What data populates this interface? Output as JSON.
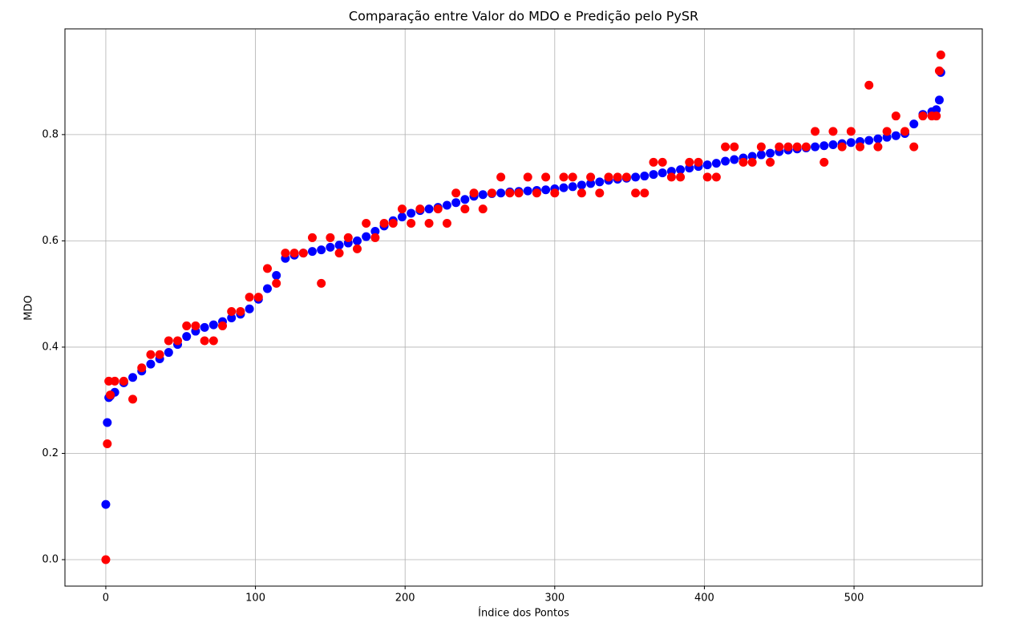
{
  "chart_data": {
    "type": "scatter",
    "title": "Comparação entre Valor do MDO e Predição pelo PySR",
    "x_label": "Índice dos Pontos",
    "y_label": "MDO",
    "x": [
      0,
      1,
      2,
      3,
      6,
      12,
      18,
      24,
      30,
      36,
      42,
      48,
      54,
      60,
      66,
      72,
      78,
      84,
      90,
      96,
      102,
      108,
      114,
      120,
      126,
      132,
      138,
      144,
      150,
      156,
      162,
      168,
      174,
      180,
      186,
      192,
      198,
      204,
      210,
      216,
      222,
      228,
      234,
      240,
      246,
      252,
      258,
      264,
      270,
      276,
      282,
      288,
      294,
      300,
      306,
      312,
      318,
      324,
      330,
      336,
      342,
      348,
      354,
      360,
      366,
      372,
      378,
      384,
      390,
      396,
      402,
      408,
      414,
      420,
      426,
      432,
      438,
      444,
      450,
      456,
      462,
      468,
      474,
      480,
      486,
      492,
      498,
      504,
      510,
      516,
      522,
      528,
      534,
      540,
      546,
      552,
      555,
      557,
      558
    ],
    "series": [
      {
        "color": "#0000ff",
        "values": [
          0.104,
          0.258,
          0.305,
          0.308,
          0.315,
          0.333,
          0.343,
          0.355,
          0.368,
          0.378,
          0.39,
          0.405,
          0.42,
          0.43,
          0.437,
          0.442,
          0.448,
          0.455,
          0.462,
          0.472,
          0.49,
          0.51,
          0.535,
          0.567,
          0.573,
          0.577,
          0.58,
          0.583,
          0.588,
          0.592,
          0.596,
          0.6,
          0.608,
          0.618,
          0.628,
          0.638,
          0.645,
          0.652,
          0.657,
          0.66,
          0.663,
          0.667,
          0.672,
          0.678,
          0.684,
          0.687,
          0.689,
          0.69,
          0.692,
          0.693,
          0.694,
          0.695,
          0.696,
          0.698,
          0.7,
          0.702,
          0.705,
          0.708,
          0.711,
          0.714,
          0.716,
          0.718,
          0.72,
          0.722,
          0.725,
          0.728,
          0.731,
          0.734,
          0.737,
          0.74,
          0.743,
          0.746,
          0.75,
          0.753,
          0.756,
          0.759,
          0.762,
          0.765,
          0.768,
          0.771,
          0.773,
          0.775,
          0.777,
          0.779,
          0.781,
          0.783,
          0.785,
          0.787,
          0.789,
          0.792,
          0.795,
          0.798,
          0.802,
          0.82,
          0.838,
          0.843,
          0.847,
          0.865,
          0.917
        ]
      },
      {
        "color": "#ff0000",
        "values": [
          0.0,
          0.218,
          0.336,
          0.31,
          0.336,
          0.336,
          0.302,
          0.361,
          0.386,
          0.386,
          0.412,
          0.412,
          0.44,
          0.44,
          0.412,
          0.412,
          0.44,
          0.467,
          0.467,
          0.494,
          0.494,
          0.548,
          0.52,
          0.577,
          0.577,
          0.577,
          0.606,
          0.52,
          0.606,
          0.577,
          0.606,
          0.585,
          0.633,
          0.606,
          0.633,
          0.633,
          0.66,
          0.633,
          0.66,
          0.633,
          0.66,
          0.633,
          0.69,
          0.66,
          0.69,
          0.66,
          0.69,
          0.72,
          0.69,
          0.69,
          0.72,
          0.69,
          0.72,
          0.69,
          0.72,
          0.72,
          0.69,
          0.72,
          0.69,
          0.72,
          0.72,
          0.72,
          0.69,
          0.69,
          0.748,
          0.748,
          0.72,
          0.72,
          0.748,
          0.748,
          0.72,
          0.72,
          0.777,
          0.777,
          0.748,
          0.748,
          0.777,
          0.748,
          0.777,
          0.777,
          0.777,
          0.777,
          0.806,
          0.748,
          0.806,
          0.777,
          0.806,
          0.777,
          0.893,
          0.777,
          0.806,
          0.835,
          0.806,
          0.777,
          0.835,
          0.835,
          0.835,
          0.92,
          0.95
        ]
      }
    ],
    "xlim": [
      -27.3,
      585.7
    ],
    "ylim": [
      -0.0498,
      0.999
    ],
    "xticks": [
      0,
      100,
      200,
      300,
      400,
      500
    ],
    "yticks": [
      {
        "value": 0,
        "label": "0.0"
      },
      0.2,
      0.4,
      0.6,
      0.8
    ],
    "grid": true
  }
}
